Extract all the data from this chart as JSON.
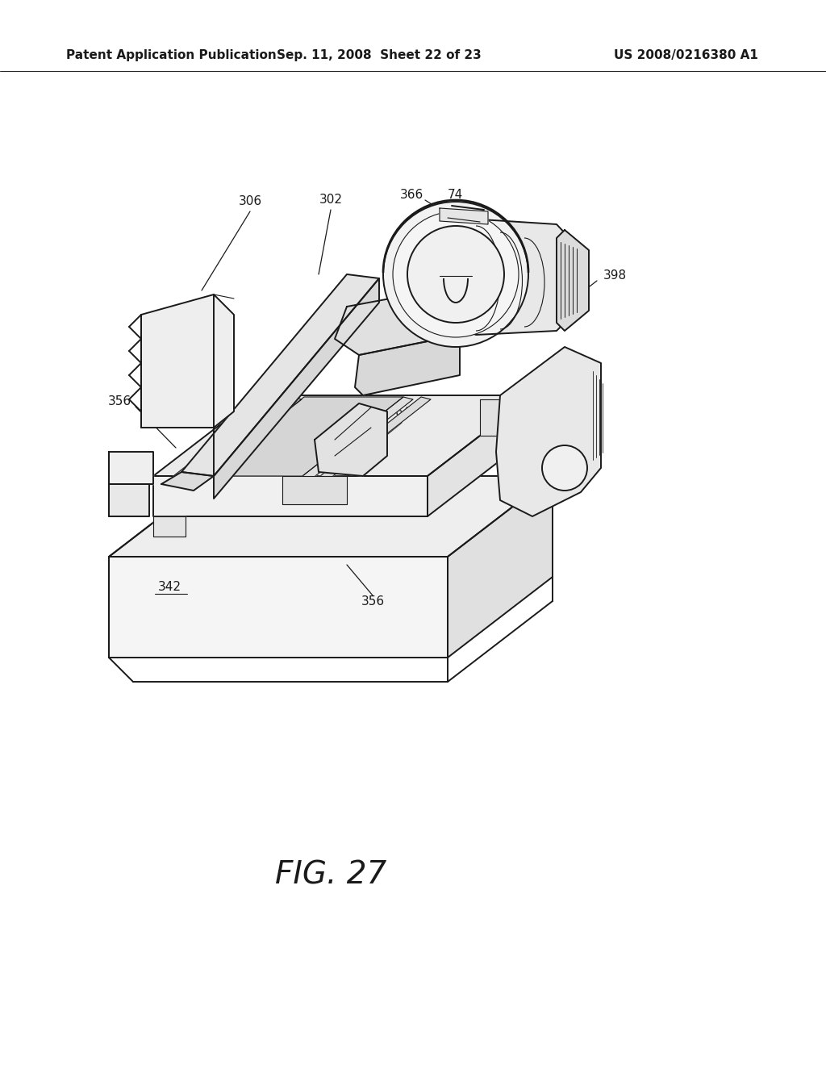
{
  "background_color": "#ffffff",
  "header_left": "Patent Application Publication",
  "header_center": "Sep. 11, 2008  Sheet 22 of 23",
  "header_right": "US 2008/0216380 A1",
  "fig_label": "FIG. 27",
  "line_color": "#1a1a1a",
  "lw_main": 1.4,
  "lw_thin": 0.8,
  "lw_thick": 2.0
}
